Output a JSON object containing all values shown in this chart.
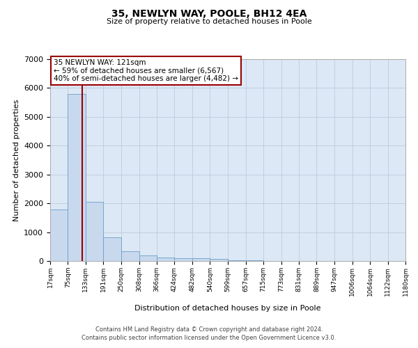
{
  "title": "35, NEWLYN WAY, POOLE, BH12 4EA",
  "subtitle": "Size of property relative to detached houses in Poole",
  "xlabel": "Distribution of detached houses by size in Poole",
  "ylabel": "Number of detached properties",
  "property_label": "35 NEWLYN WAY: 121sqm",
  "annotation_line1": "← 59% of detached houses are smaller (6,567)",
  "annotation_line2": "40% of semi-detached houses are larger (4,482) →",
  "footer1": "Contains HM Land Registry data © Crown copyright and database right 2024.",
  "footer2": "Contains public sector information licensed under the Open Government Licence v3.0.",
  "bin_edges": [
    17,
    75,
    133,
    191,
    250,
    308,
    366,
    424,
    482,
    540,
    599,
    657,
    715,
    773,
    831,
    889,
    947,
    1006,
    1064,
    1122,
    1180
  ],
  "bin_labels": [
    "17sqm",
    "75sqm",
    "133sqm",
    "191sqm",
    "250sqm",
    "308sqm",
    "366sqm",
    "424sqm",
    "482sqm",
    "540sqm",
    "599sqm",
    "657sqm",
    "715sqm",
    "773sqm",
    "831sqm",
    "889sqm",
    "947sqm",
    "1006sqm",
    "1064sqm",
    "1122sqm",
    "1180sqm"
  ],
  "bar_heights": [
    1780,
    5800,
    2060,
    820,
    340,
    190,
    120,
    105,
    95,
    70,
    30,
    15,
    10,
    5,
    3,
    2,
    1,
    1,
    0,
    0
  ],
  "bar_color": "#c8d9ee",
  "bar_edgecolor": "#6b9fc8",
  "vline_color": "#990000",
  "vline_x": 121,
  "annotation_box_edgecolor": "#990000",
  "plot_bg_color": "#dce8f5",
  "grid_color": "#c0cfe0",
  "ylim": [
    0,
    7000
  ],
  "yticks": [
    0,
    1000,
    2000,
    3000,
    4000,
    5000,
    6000,
    7000
  ],
  "fig_width": 6.0,
  "fig_height": 5.0,
  "dpi": 100
}
